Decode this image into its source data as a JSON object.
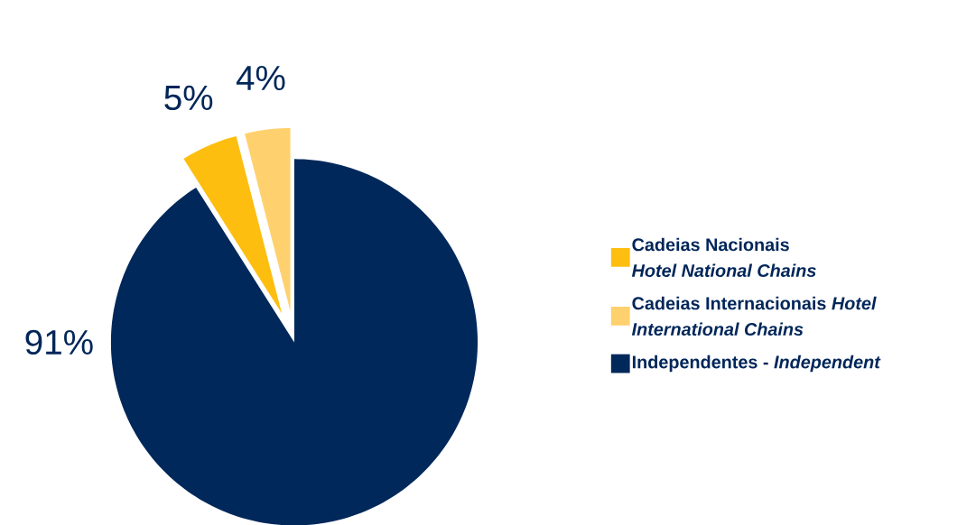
{
  "chart_data": {
    "type": "pie",
    "categories": [
      "Cadeias Nacionais *Hotel National Chains*",
      "Cadeias Internacionais *Hotel International Chains*",
      "Independentes - *Independent*"
    ],
    "values": [
      5,
      4,
      91
    ],
    "colors": [
      "#fdbe10",
      "#ffd16e",
      "#00285a"
    ],
    "value_labels": [
      "5%",
      "4%",
      "91%"
    ],
    "legend": "right"
  }
}
